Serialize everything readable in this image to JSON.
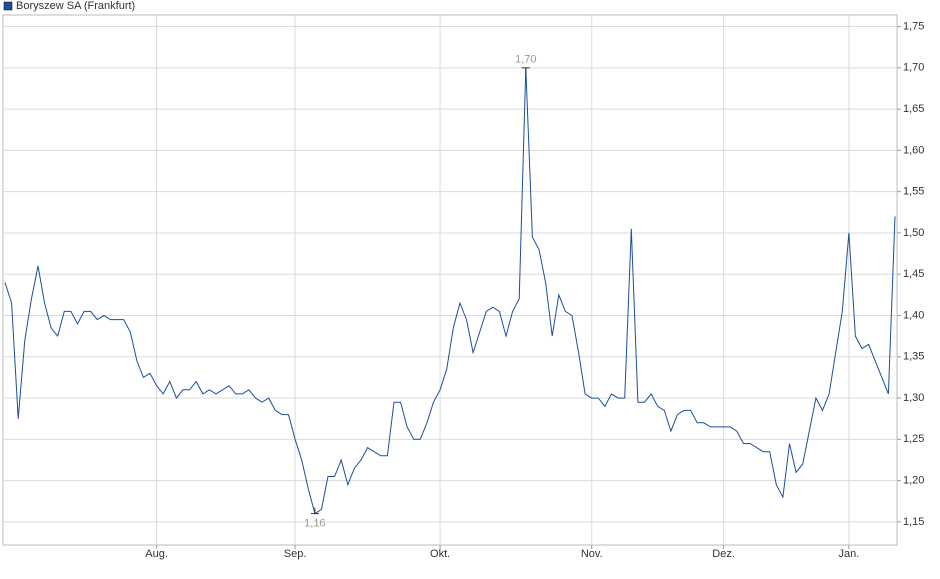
{
  "chart_data": {
    "type": "line",
    "categories": [
      null,
      null,
      null,
      null,
      null,
      null,
      null,
      null,
      null,
      null,
      null,
      null,
      null,
      null,
      null,
      null,
      null,
      null,
      null,
      null,
      null,
      null,
      null,
      "Aug.",
      null,
      null,
      null,
      null,
      null,
      null,
      null,
      null,
      null,
      null,
      null,
      null,
      null,
      null,
      null,
      null,
      null,
      null,
      null,
      null,
      "Sep.",
      null,
      null,
      null,
      null,
      null,
      null,
      null,
      null,
      null,
      null,
      null,
      null,
      null,
      null,
      null,
      null,
      null,
      null,
      null,
      null,
      null,
      "Okt.",
      null,
      null,
      null,
      null,
      null,
      null,
      null,
      null,
      null,
      null,
      null,
      null,
      null,
      null,
      null,
      null,
      null,
      null,
      null,
      null,
      null,
      null,
      "Nov.",
      null,
      null,
      null,
      null,
      null,
      null,
      null,
      null,
      null,
      null,
      null,
      null,
      null,
      null,
      null,
      null,
      null,
      null,
      null,
      "Dez.",
      null,
      null,
      null,
      null,
      null,
      null,
      null,
      null,
      null,
      null,
      null,
      null,
      null,
      null,
      null,
      null,
      null,
      null,
      "Jan.",
      null,
      null,
      null,
      null,
      null,
      null,
      null
    ],
    "series": [
      {
        "name": "Boryszew SA (Frankfurt)",
        "color": "#1c4f9c",
        "values": [
          1.44,
          1.415,
          1.275,
          1.37,
          1.42,
          1.46,
          1.415,
          1.385,
          1.375,
          1.405,
          1.405,
          1.39,
          1.405,
          1.405,
          1.395,
          1.4,
          1.395,
          1.395,
          1.395,
          1.38,
          1.345,
          1.325,
          1.33,
          1.315,
          1.305,
          1.32,
          1.3,
          1.31,
          1.31,
          1.32,
          1.305,
          1.31,
          1.305,
          1.31,
          1.315,
          1.305,
          1.305,
          1.31,
          1.3,
          1.295,
          1.3,
          1.285,
          1.28,
          1.28,
          1.25,
          1.225,
          1.19,
          1.16,
          1.165,
          1.205,
          1.205,
          1.225,
          1.195,
          1.215,
          1.225,
          1.24,
          1.235,
          1.23,
          1.23,
          1.295,
          1.295,
          1.265,
          1.25,
          1.25,
          1.27,
          1.295,
          1.31,
          1.335,
          1.385,
          1.415,
          1.395,
          1.355,
          1.38,
          1.405,
          1.41,
          1.405,
          1.375,
          1.405,
          1.42,
          1.7,
          1.495,
          1.48,
          1.44,
          1.375,
          1.425,
          1.405,
          1.4,
          1.355,
          1.305,
          1.3,
          1.3,
          1.29,
          1.305,
          1.3,
          1.3,
          1.505,
          1.295,
          1.295,
          1.305,
          1.29,
          1.285,
          1.26,
          1.28,
          1.285,
          1.285,
          1.27,
          1.27,
          1.265,
          1.265,
          1.265,
          1.265,
          1.26,
          1.245,
          1.245,
          1.24,
          1.235,
          1.235,
          1.195,
          1.18,
          1.245,
          1.21,
          1.22,
          1.26,
          1.3,
          1.285,
          1.305,
          1.355,
          1.405,
          1.5,
          1.375,
          1.36,
          1.365,
          1.345,
          1.325,
          1.305,
          1.52
        ],
        "value_labels": [
          null,
          null,
          null,
          null,
          null,
          null,
          null,
          null,
          null,
          null,
          null,
          null,
          null,
          null,
          null,
          null,
          null,
          null,
          null,
          null,
          null,
          null,
          null,
          null,
          null,
          null,
          null,
          null,
          null,
          null,
          null,
          null,
          null,
          null,
          null,
          null,
          null,
          null,
          null,
          null,
          null,
          null,
          null,
          null,
          null,
          null,
          null,
          "1,16",
          null,
          null,
          null,
          null,
          null,
          null,
          null,
          null,
          null,
          null,
          null,
          null,
          null,
          null,
          null,
          null,
          null,
          null,
          null,
          null,
          null,
          null,
          null,
          null,
          null,
          null,
          null,
          null,
          null,
          null,
          null,
          "1,70",
          null,
          null,
          null,
          null,
          null,
          null,
          null,
          null,
          null,
          null,
          null,
          null,
          null,
          null,
          null,
          null,
          null,
          null,
          null,
          null,
          null,
          null,
          null,
          null,
          null,
          null,
          null,
          null,
          null,
          null,
          null,
          null,
          null,
          null,
          null,
          null,
          null,
          null,
          null,
          null,
          null,
          null,
          null,
          null,
          null,
          null,
          null,
          null,
          null,
          null,
          null,
          null,
          null,
          null,
          null,
          null
        ]
      }
    ],
    "ylim": [
      1.122,
      1.764
    ],
    "yticks": [
      {
        "value": 1.15,
        "label": "1,15"
      },
      {
        "value": 1.2,
        "label": "1,20"
      },
      {
        "value": 1.25,
        "label": "1,25"
      },
      {
        "value": 1.3,
        "label": "1,30"
      },
      {
        "value": 1.35,
        "label": "1,35"
      },
      {
        "value": 1.4,
        "label": "1,40"
      },
      {
        "value": 1.45,
        "label": "1,45"
      },
      {
        "value": 1.5,
        "label": "1,50"
      },
      {
        "value": 1.55,
        "label": "1,55"
      },
      {
        "value": 1.6,
        "label": "1,60"
      },
      {
        "value": 1.65,
        "label": "1,65"
      },
      {
        "value": 1.7,
        "label": "1,70"
      },
      {
        "value": 1.75,
        "label": "1,75"
      }
    ],
    "grid": true
  }
}
